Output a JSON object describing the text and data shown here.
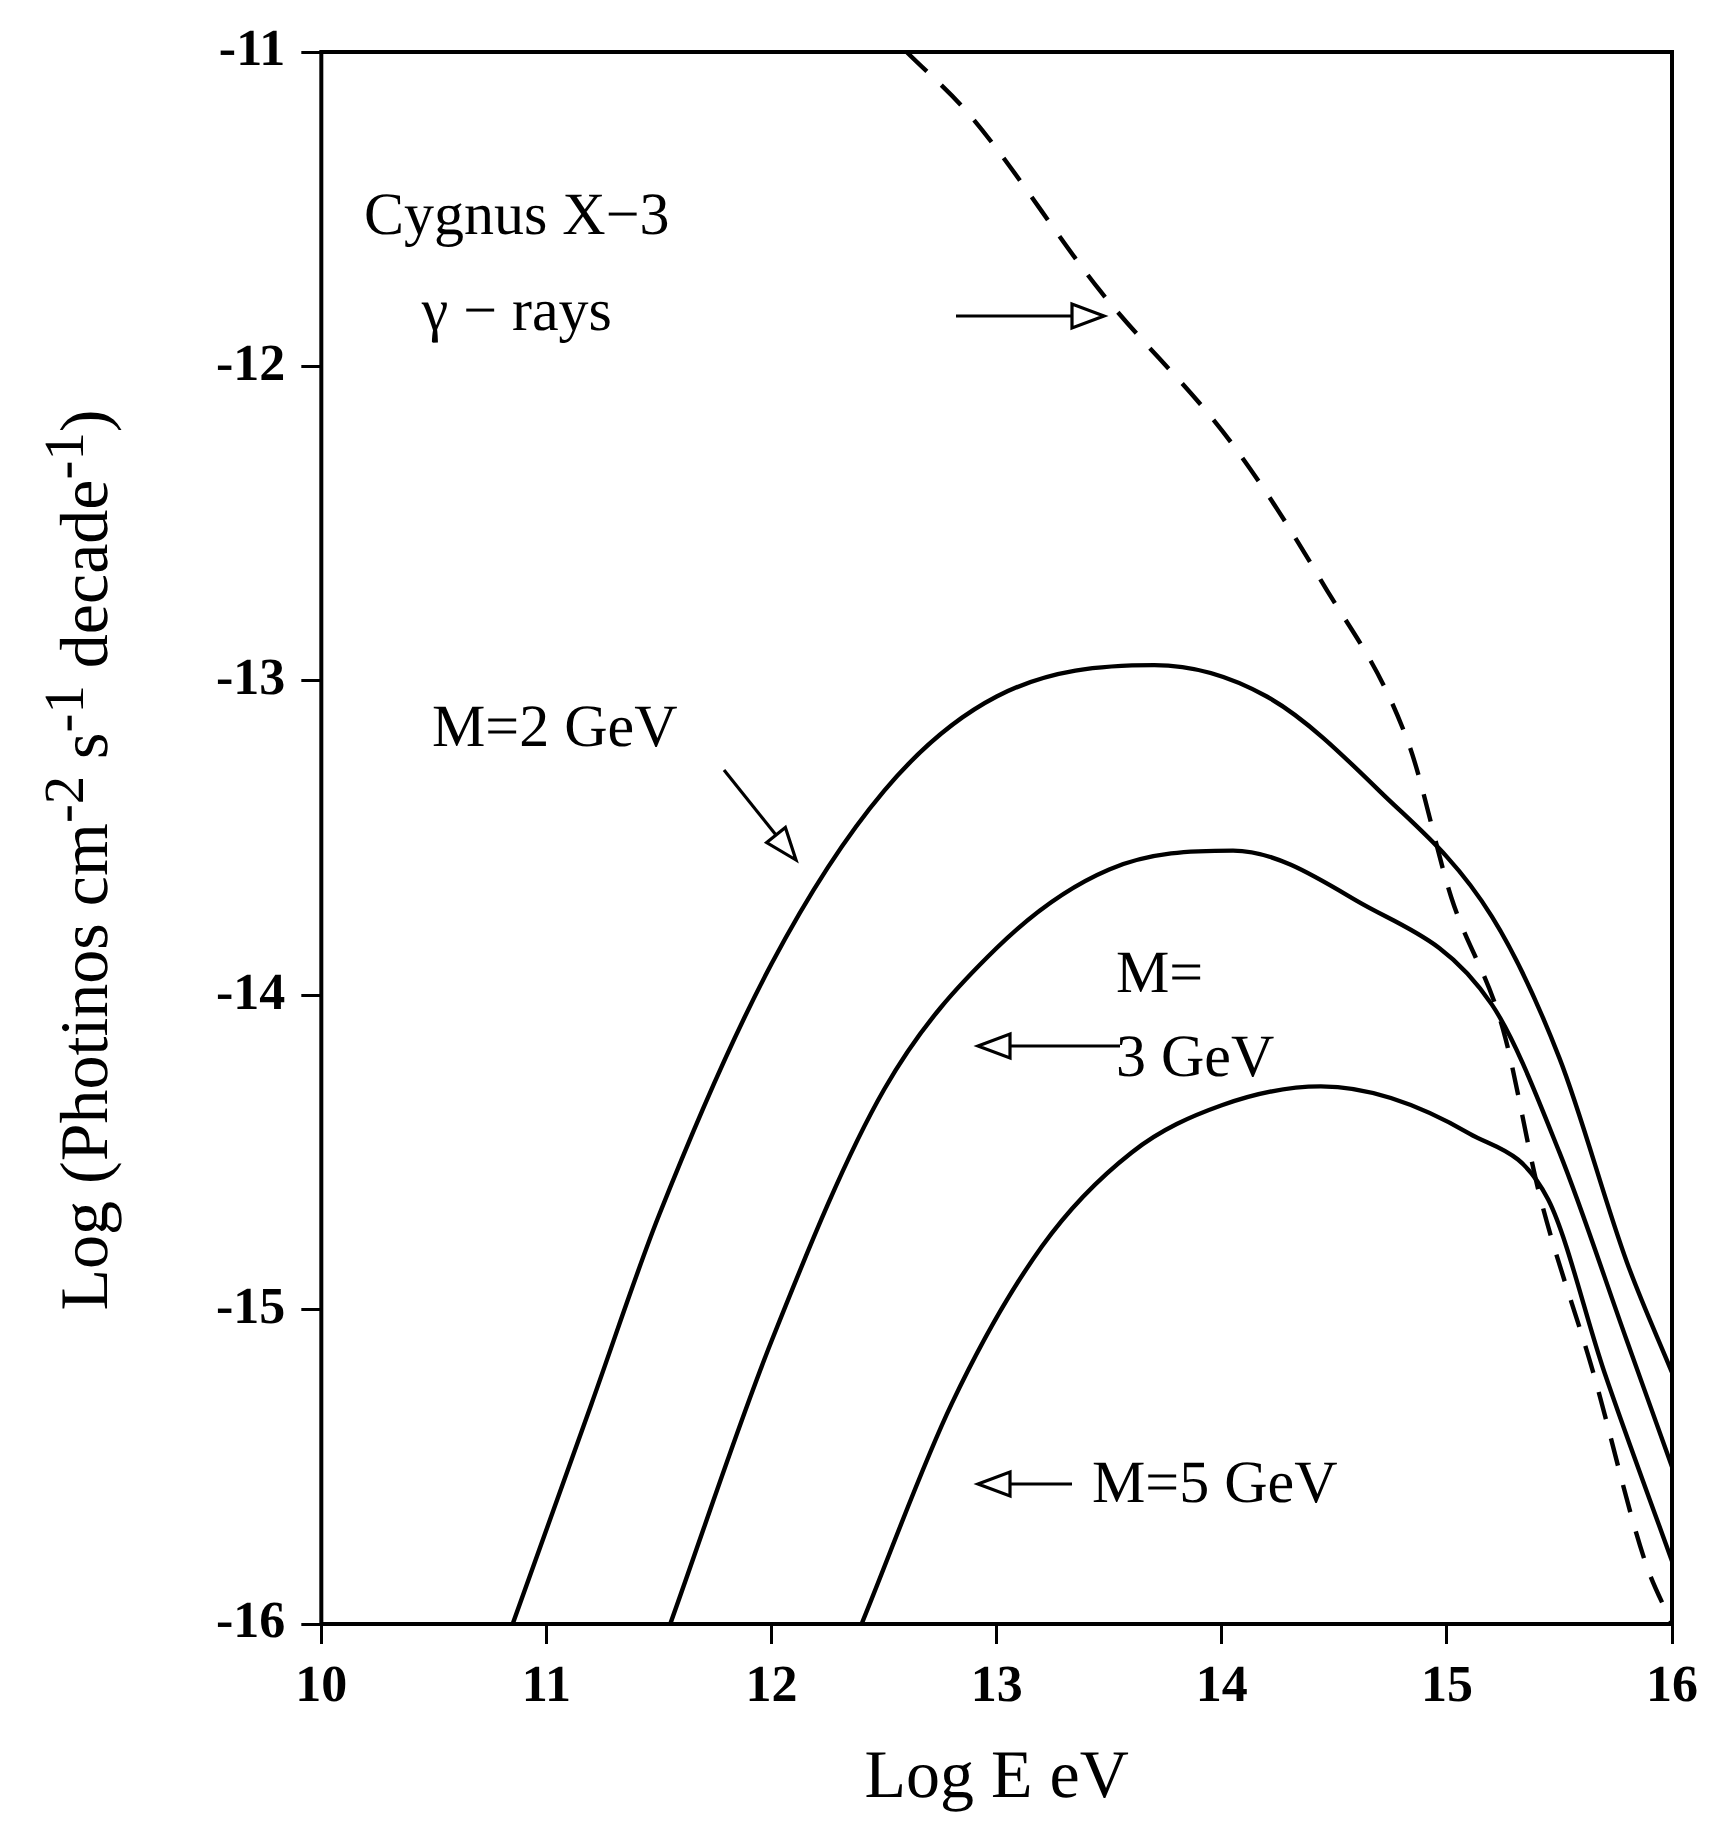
{
  "chart_data": {
    "type": "line",
    "xlabel": "Log E eV",
    "ylabel": "Log (Photinos cm$^{-2}$ s$^{-1}$ decade$^{-1}$)",
    "xlim": [
      10,
      16
    ],
    "xticks": [
      10,
      11,
      12,
      13,
      14,
      15,
      16
    ],
    "ylim": [
      -16,
      -11
    ],
    "yticks": [
      -16,
      -15,
      -14,
      -13,
      -12,
      -11
    ],
    "grid": false,
    "legend": false,
    "marker": "none",
    "series": [
      {
        "color": "#000000",
        "line_style": "dashed",
        "x": [
          12.6,
          12.88,
          13.46,
          14.05,
          14.44,
          14.83,
          15.02,
          15.25,
          15.41,
          15.65,
          15.88,
          16
        ],
        "values": [
          -11,
          -11.2,
          -11.76,
          -12.25,
          -12.68,
          -13.2,
          -13.69,
          -14.11,
          -14.63,
          -15.2,
          -15.8,
          -16
        ]
      },
      {
        "color": "#000000",
        "line_style": "solid",
        "x": [
          10.85,
          11.2,
          11.5,
          12,
          12.5,
          13,
          13.7,
          14.2,
          14.7,
          15.2,
          15.5,
          15.8,
          16
        ],
        "values": [
          -16,
          -15.3,
          -14.7,
          -13.9,
          -13.35,
          -13.05,
          -12.95,
          -13.05,
          -13.35,
          -13.75,
          -14.2,
          -14.85,
          -15.2
        ]
      },
      {
        "color": "#000000",
        "line_style": "solid",
        "x": [
          11.55,
          12,
          12.5,
          13,
          13.5,
          14.05,
          14.6,
          15.2,
          15.5,
          15.8,
          16
        ],
        "values": [
          -16,
          -15.1,
          -14.3,
          -13.85,
          -13.6,
          -13.54,
          -13.7,
          -14.03,
          -14.5,
          -15.1,
          -15.5
        ]
      },
      {
        "color": "#000000",
        "line_style": "solid",
        "x": [
          12.4,
          12.8,
          13.2,
          13.6,
          14,
          14.44,
          15.1,
          15.45,
          15.7,
          16
        ],
        "values": [
          -16,
          -15.3,
          -14.8,
          -14.5,
          -14.35,
          -14.29,
          -14.44,
          -14.65,
          -15.2,
          -15.8
        ]
      }
    ],
    "annotations": [
      "Cygnus X−3\nγ − rays",
      "M=2 GeV",
      "M=\n3 GeV",
      "M=5 GeV"
    ]
  }
}
